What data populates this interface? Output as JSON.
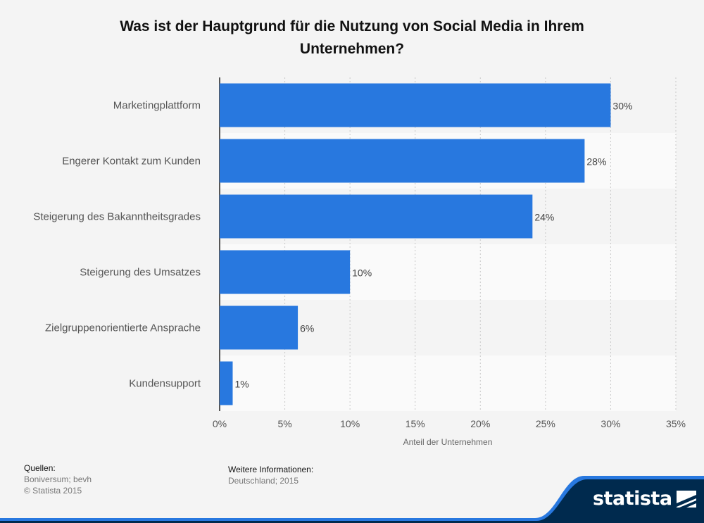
{
  "title": "Was ist der Hauptgrund für die Nutzung von Social Media in Ihrem Unternehmen?",
  "chart_data": {
    "type": "bar",
    "orientation": "horizontal",
    "title": "Was ist der Hauptgrund für die Nutzung von Social Media in Ihrem Unternehmen?",
    "categories": [
      "Marketingplattform",
      "Engerer Kontakt zum Kunden",
      "Steigerung des Bakanntheitsgrades",
      "Steigerung des Umsatzes",
      "Zielgruppenorientierte Ansprache",
      "Kundensupport"
    ],
    "values": [
      30,
      28,
      24,
      10,
      6,
      1
    ],
    "value_labels": [
      "30%",
      "28%",
      "24%",
      "10%",
      "6%",
      "1%"
    ],
    "xlabel": "Anteil der Unternehmen",
    "ylabel": "",
    "xlim": [
      0,
      35
    ],
    "xticks": [
      0,
      5,
      10,
      15,
      20,
      25,
      30,
      35
    ],
    "xtick_labels": [
      "0%",
      "5%",
      "10%",
      "15%",
      "20%",
      "25%",
      "30%",
      "35%"
    ],
    "bar_color": "#2878df",
    "grid": true
  },
  "footer": {
    "sources_heading": "Quellen:",
    "sources_line1": "Boniversum; bevh",
    "sources_line2": "© Statista 2015",
    "info_heading": "Weitere Informationen:",
    "info_text": "Deutschland; 2015"
  },
  "logo": {
    "text": "statista",
    "icon": "statista-logo-icon"
  },
  "colors": {
    "background": "#f4f4f4",
    "band_light": "#fafafa",
    "footer_band": "#002a4e",
    "accent_stripe": "#2878df"
  }
}
